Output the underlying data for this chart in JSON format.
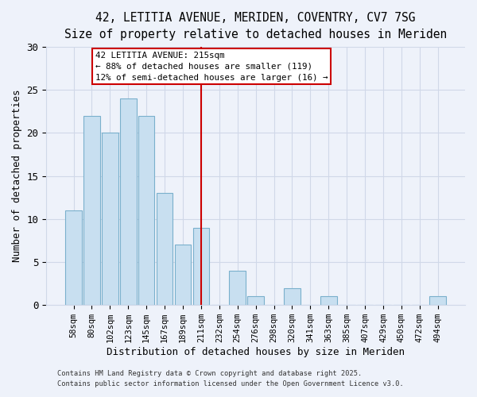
{
  "title": "42, LETITIA AVENUE, MERIDEN, COVENTRY, CV7 7SG",
  "subtitle": "Size of property relative to detached houses in Meriden",
  "xlabel": "Distribution of detached houses by size in Meriden",
  "ylabel": "Number of detached properties",
  "bar_labels": [
    "58sqm",
    "80sqm",
    "102sqm",
    "123sqm",
    "145sqm",
    "167sqm",
    "189sqm",
    "211sqm",
    "232sqm",
    "254sqm",
    "276sqm",
    "298sqm",
    "320sqm",
    "341sqm",
    "363sqm",
    "385sqm",
    "407sqm",
    "429sqm",
    "450sqm",
    "472sqm",
    "494sqm"
  ],
  "bar_heights": [
    11,
    22,
    20,
    24,
    22,
    13,
    7,
    9,
    0,
    4,
    1,
    0,
    2,
    0,
    1,
    0,
    0,
    0,
    0,
    0,
    1
  ],
  "bar_color": "#c8dff0",
  "bar_edge_color": "#7ab0cc",
  "ylim": [
    0,
    30
  ],
  "yticks": [
    0,
    5,
    10,
    15,
    20,
    25,
    30
  ],
  "vline_x": 7,
  "vline_color": "#cc0000",
  "annotation_title": "42 LETITIA AVENUE: 215sqm",
  "annotation_line1": "← 88% of detached houses are smaller (119)",
  "annotation_line2": "12% of semi-detached houses are larger (16) →",
  "annotation_box_color": "#ffffff",
  "annotation_box_edge": "#cc0000",
  "background_color": "#eef2fa",
  "grid_color": "#d0d8e8",
  "title_fontsize": 10.5,
  "subtitle_fontsize": 9.5,
  "footer1": "Contains HM Land Registry data © Crown copyright and database right 2025.",
  "footer2": "Contains public sector information licensed under the Open Government Licence v3.0."
}
